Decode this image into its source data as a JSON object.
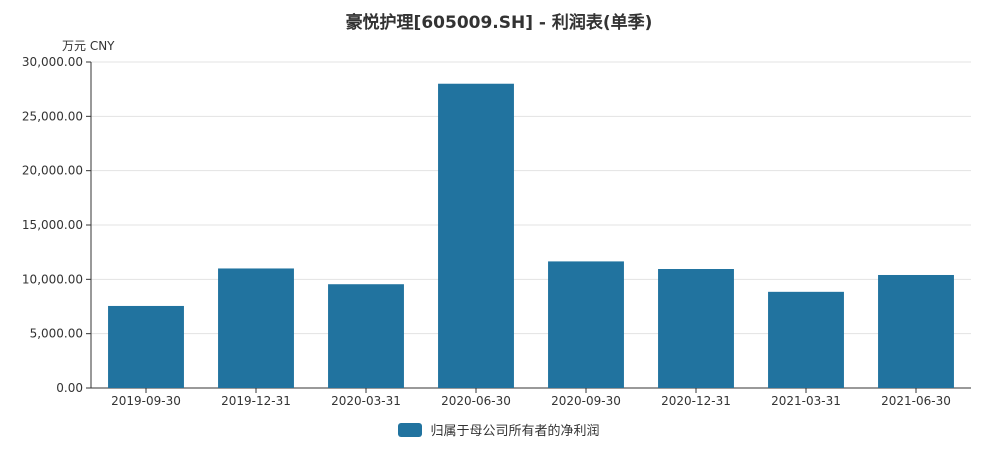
{
  "chart_data": {
    "type": "bar",
    "title": "豪悦护理[605009.SH] - 利润表(单季)",
    "unit_label": "万元  CNY",
    "categories": [
      "2019-09-30",
      "2019-12-31",
      "2020-03-31",
      "2020-06-30",
      "2020-09-30",
      "2020-12-31",
      "2021-03-31",
      "2021-06-30"
    ],
    "series": [
      {
        "name": "归属于母公司所有者的净利润",
        "values": [
          7550,
          11000,
          9550,
          28000,
          11650,
          10950,
          8850,
          10400
        ],
        "color": "#21739f"
      }
    ],
    "ylim": [
      0,
      30000
    ],
    "yticks": [
      "0.00",
      "5,000.00",
      "10,000.00",
      "15,000.00",
      "20,000.00",
      "25,000.00",
      "30,000.00"
    ],
    "grid": true,
    "legend_position": "bottom-center"
  }
}
